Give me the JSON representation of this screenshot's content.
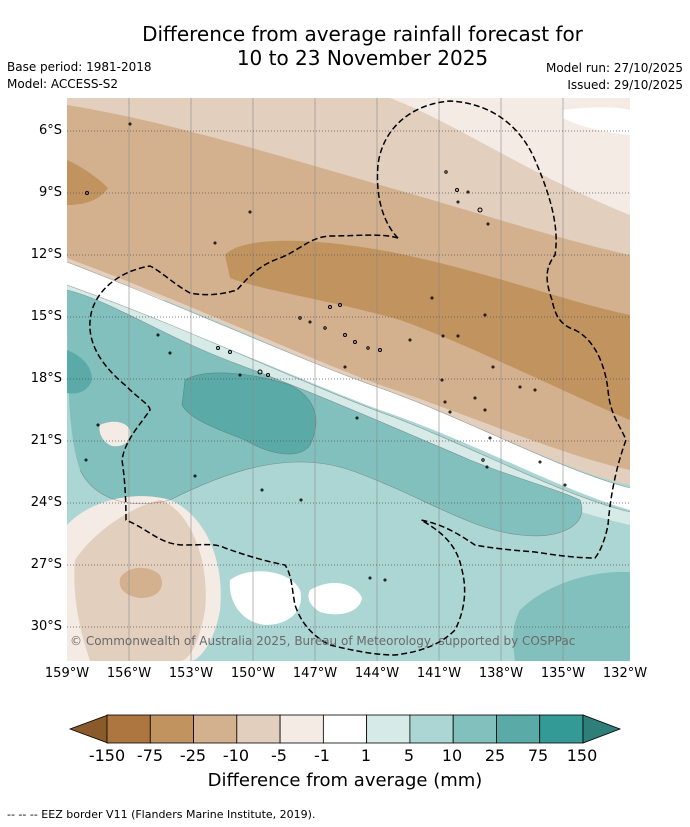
{
  "header": {
    "title_line1": "Difference from average rainfall forecast for",
    "title_line2": "10 to 23 November 2025",
    "base_period": "Base period: 1981-2018",
    "model": "Model: ACCESS-S2",
    "model_run": "Model run: 27/10/2025",
    "issued": "Issued: 29/10/2025"
  },
  "map": {
    "lat_labels": [
      "6°S",
      "9°S",
      "12°S",
      "15°S",
      "18°S",
      "21°S",
      "24°S",
      "27°S",
      "30°S"
    ],
    "lon_labels": [
      "159°W",
      "156°W",
      "153°W",
      "150°W",
      "147°W",
      "144°W",
      "141°W",
      "138°W",
      "135°W",
      "132°W"
    ],
    "copyright": "© Commonwealth of Australia 2025, Bureau of Meteorology, supported by COSPPac",
    "eez_border_color": "#000000"
  },
  "colorbar": {
    "ticks": [
      "-150",
      "-75",
      "-25",
      "-10",
      "-5",
      "-1",
      "1",
      "5",
      "10",
      "25",
      "75",
      "150"
    ],
    "colors": [
      "#ad7640",
      "#c1935f",
      "#d3b18f",
      "#e3cfbd",
      "#f4ebe5",
      "#ffffff",
      "#d6eae7",
      "#acd6d3",
      "#82c0bd",
      "#5aaba8",
      "#349a95"
    ],
    "under_color": "#8b5a2b",
    "over_color": "#2e7e79",
    "label": "Difference from average (mm)"
  },
  "footer": {
    "eez_note": "-- -- -- EEZ border V11 (Flanders Marine Institute, 2019)."
  }
}
